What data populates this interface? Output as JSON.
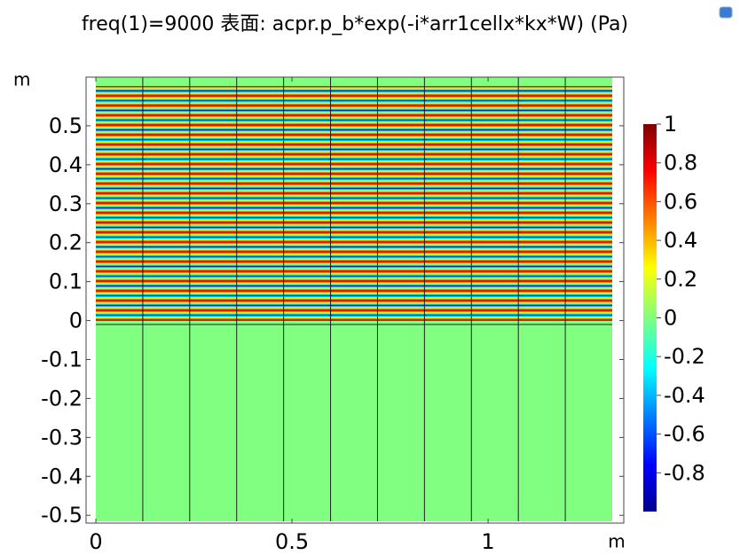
{
  "chart_data": {
    "type": "surface",
    "title": "freq(1)=9000 表面: acpr.p_b*exp(-i*arr1cellx*kx*W) (Pa)",
    "x_label": "m",
    "y_label": "m",
    "xlim": [
      -0.025,
      1.346
    ],
    "ylim": [
      -0.52,
      0.625
    ],
    "xticks": [
      0,
      0.5,
      1
    ],
    "yticks": [
      -0.5,
      -0.4,
      -0.3,
      -0.2,
      -0.1,
      0,
      0.1,
      0.2,
      0.3,
      0.4,
      0.5
    ],
    "colorbar": {
      "lim": [
        -1,
        1
      ],
      "ticks": [
        -0.8,
        -0.6,
        -0.4,
        -0.2,
        0,
        0.2,
        0.4,
        0.6,
        0.8,
        1
      ]
    }
  }
}
